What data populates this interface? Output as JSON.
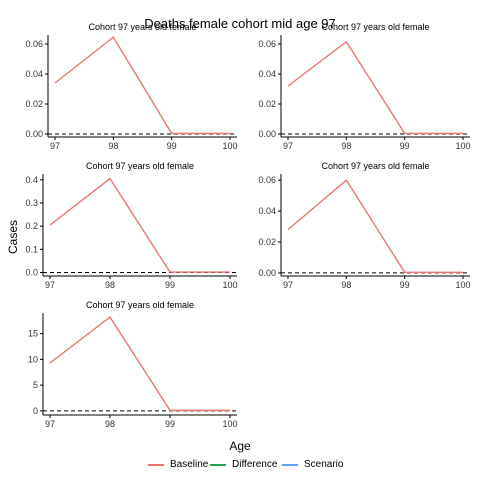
{
  "title": "Deaths female cohort mid age 97",
  "ylabel": "Cases",
  "xlabel": "Age",
  "legend": [
    {
      "label": "Baseline",
      "color": "#e8766d"
    },
    {
      "label": "Difference",
      "color": "#22a24a"
    },
    {
      "label": "Scenario",
      "color": "#619cff"
    }
  ],
  "chart_data": [
    {
      "type": "line",
      "title": "Cohort 97 years old female",
      "x": [
        97,
        98,
        99,
        100
      ],
      "x_ticks": [
        "97",
        "98",
        "99",
        "100"
      ],
      "series": [
        {
          "name": "Baseline",
          "values": [
            0.034,
            0.0645,
            0.0004,
            0.0004
          ]
        }
      ],
      "ylim": [
        -0.002,
        0.066
      ],
      "y_ticks": [
        "0.00",
        "0.02",
        "0.04",
        "0.06"
      ],
      "y_tick_values": [
        0,
        0.02,
        0.04,
        0.06
      ],
      "reference_line": 0
    },
    {
      "type": "line",
      "title": "Cohort 97 years old female",
      "x": [
        97,
        98,
        99,
        100
      ],
      "x_ticks": [
        "97",
        "98",
        "99",
        "100"
      ],
      "series": [
        {
          "name": "Baseline",
          "values": [
            0.032,
            0.0615,
            0.0004,
            0.0004
          ]
        }
      ],
      "ylim": [
        -0.002,
        0.066
      ],
      "y_ticks": [
        "0.00",
        "0.02",
        "0.04",
        "0.06"
      ],
      "y_tick_values": [
        0,
        0.02,
        0.04,
        0.06
      ],
      "reference_line": 0
    },
    {
      "type": "line",
      "title": "Cohort 97 years old female",
      "x": [
        97,
        98,
        99,
        100
      ],
      "x_ticks": [
        "97",
        "98",
        "99",
        "100"
      ],
      "series": [
        {
          "name": "Baseline",
          "values": [
            0.205,
            0.405,
            0.002,
            0.002
          ]
        }
      ],
      "ylim": [
        -0.015,
        0.425
      ],
      "y_ticks": [
        "0.0",
        "0.1",
        "0.2",
        "0.3",
        "0.4"
      ],
      "y_tick_values": [
        0,
        0.1,
        0.2,
        0.3,
        0.4
      ],
      "reference_line": 0
    },
    {
      "type": "line",
      "title": "Cohort 97 years old female",
      "x": [
        97,
        98,
        99,
        100
      ],
      "x_ticks": [
        "97",
        "98",
        "99",
        "100"
      ],
      "series": [
        {
          "name": "Baseline",
          "values": [
            0.028,
            0.06,
            0.0004,
            0.0004
          ]
        }
      ],
      "ylim": [
        -0.002,
        0.064
      ],
      "y_ticks": [
        "0.00",
        "0.02",
        "0.04",
        "0.06"
      ],
      "y_tick_values": [
        0,
        0.02,
        0.04,
        0.06
      ],
      "reference_line": 0
    },
    {
      "type": "line",
      "title": "Cohort 97 years old female",
      "x": [
        97,
        98,
        99,
        100
      ],
      "x_ticks": [
        "97",
        "98",
        "99",
        "100"
      ],
      "series": [
        {
          "name": "Baseline",
          "values": [
            9.3,
            18.2,
            0.1,
            0.1
          ]
        }
      ],
      "ylim": [
        -0.8,
        19.0
      ],
      "y_ticks": [
        "0",
        "5",
        "10",
        "15"
      ],
      "y_tick_values": [
        0,
        5,
        10,
        15
      ],
      "reference_line": 0
    }
  ]
}
